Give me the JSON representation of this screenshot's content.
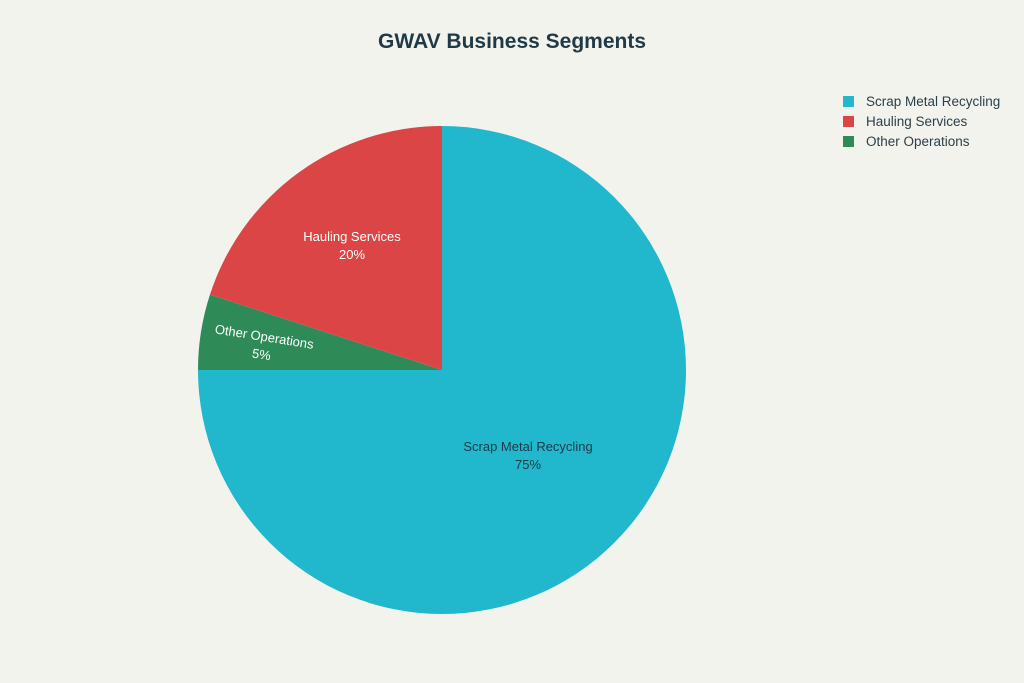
{
  "chart_data": {
    "type": "pie",
    "title": "GWAV Business Segments",
    "legend_position": "top-right",
    "start_angle": "12 o'clock",
    "direction": "clockwise",
    "slices": [
      {
        "label": "Scrap Metal Recycling",
        "value": 75,
        "value_label": "75%",
        "color": "#21b8cd",
        "label_color": "#1f3a46"
      },
      {
        "label": "Other Operations",
        "value": 5,
        "value_label": "5%",
        "color": "#2e8b57",
        "label_color": "#ffffff"
      },
      {
        "label": "Hauling Services",
        "value": 20,
        "value_label": "20%",
        "color": "#db4545",
        "label_color": "#ffffff"
      }
    ],
    "legend": [
      "Scrap Metal Recycling",
      "Hauling Services",
      "Other Operations"
    ]
  }
}
